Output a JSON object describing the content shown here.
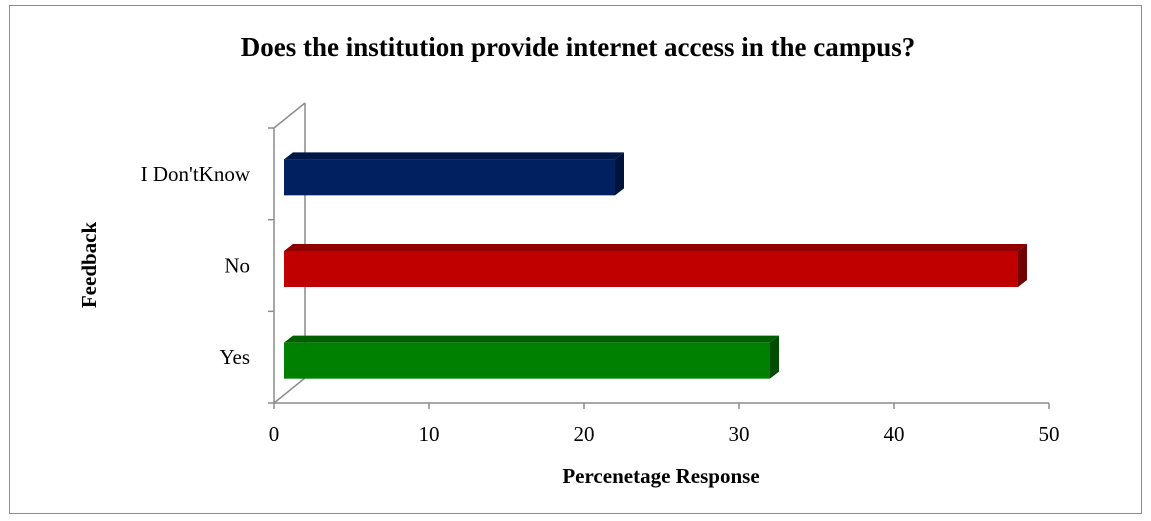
{
  "chart_data": {
    "type": "bar",
    "orientation": "horizontal",
    "title": "Does the institution provide internet access in the campus?",
    "xlabel": "Percenetage Response",
    "ylabel": "Feedback",
    "categories": [
      "Yes",
      "No",
      "I Don'tKnow"
    ],
    "values": [
      32,
      48,
      22
    ],
    "colors": [
      "#008000",
      "#c00000",
      "#002060"
    ],
    "xlim": [
      0,
      50
    ],
    "xticks": [
      "0",
      "10",
      "20",
      "30",
      "40",
      "50"
    ],
    "grid": false,
    "legend": "none",
    "style": "3d"
  }
}
